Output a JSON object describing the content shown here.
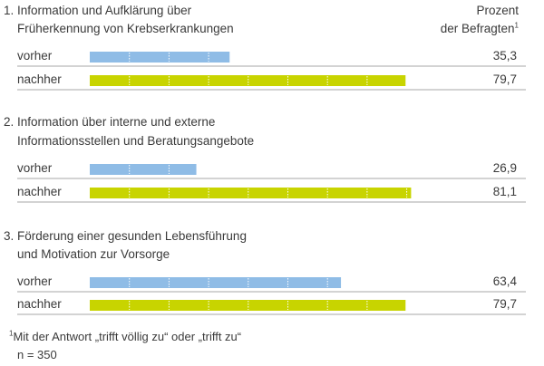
{
  "header": {
    "col_line1": "Prozent",
    "col_line2": "der Befragten",
    "col_sup": "1"
  },
  "colors": {
    "before": "#8fbce6",
    "after": "#c8d400",
    "rule": "#8a8a8a",
    "text": "#3a3a3a"
  },
  "chart_data": {
    "type": "bar",
    "orientation": "horizontal",
    "xlim": [
      0,
      100
    ],
    "series_labels": [
      "vorher",
      "nachher"
    ],
    "groups": [
      {
        "title_line1": "1. Information und Aufklärung über",
        "title_line2": "Früherkennung von Krebserkrankungen",
        "rows": [
          {
            "label": "vorher",
            "value": 35.3,
            "value_text": "35,3"
          },
          {
            "label": "nachher",
            "value": 79.7,
            "value_text": "79,7"
          }
        ]
      },
      {
        "title_line1": "2. Information über interne und externe",
        "title_line2": "Informationsstellen und Beratungsangebote",
        "rows": [
          {
            "label": "vorher",
            "value": 26.9,
            "value_text": "26,9"
          },
          {
            "label": "nachher",
            "value": 81.1,
            "value_text": "81,1"
          }
        ]
      },
      {
        "title_line1": "3. Förderung einer gesunden Lebensführung",
        "title_line2": "und Motivation zur Vorsorge",
        "rows": [
          {
            "label": "vorher",
            "value": 63.4,
            "value_text": "63,4"
          },
          {
            "label": "nachher",
            "value": 79.7,
            "value_text": "79,7"
          }
        ]
      }
    ]
  },
  "footnote": {
    "sup": "1",
    "text": "Mit der Antwort „trifft völlig zu“ oder „trifft zu“",
    "n": "n = 350"
  }
}
